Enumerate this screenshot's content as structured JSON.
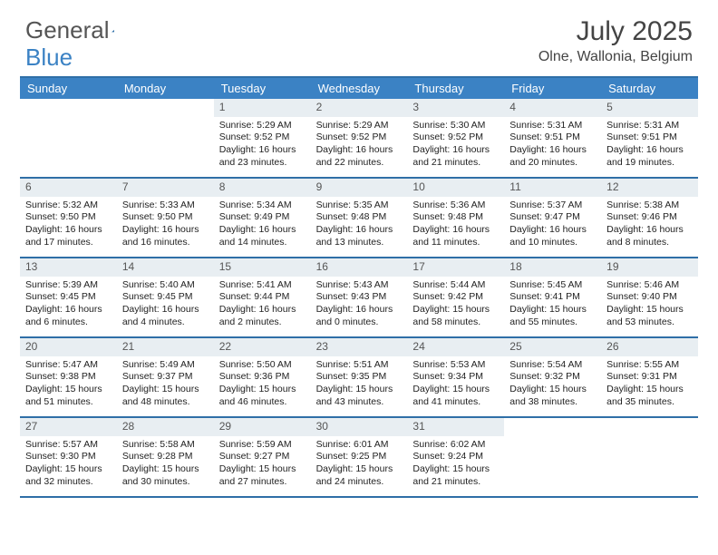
{
  "brand": {
    "part1": "General",
    "part2": "Blue"
  },
  "title": "July 2025",
  "location": "Olne, Wallonia, Belgium",
  "colors": {
    "header_bg": "#3b82c4",
    "border": "#2f6fa7",
    "daynum_bg": "#e8eef2",
    "text": "#333333",
    "white": "#ffffff"
  },
  "day_names": [
    "Sunday",
    "Monday",
    "Tuesday",
    "Wednesday",
    "Thursday",
    "Friday",
    "Saturday"
  ],
  "weeks": [
    [
      null,
      null,
      {
        "n": "1",
        "sr": "Sunrise: 5:29 AM",
        "ss": "Sunset: 9:52 PM",
        "d1": "Daylight: 16 hours",
        "d2": "and 23 minutes."
      },
      {
        "n": "2",
        "sr": "Sunrise: 5:29 AM",
        "ss": "Sunset: 9:52 PM",
        "d1": "Daylight: 16 hours",
        "d2": "and 22 minutes."
      },
      {
        "n": "3",
        "sr": "Sunrise: 5:30 AM",
        "ss": "Sunset: 9:52 PM",
        "d1": "Daylight: 16 hours",
        "d2": "and 21 minutes."
      },
      {
        "n": "4",
        "sr": "Sunrise: 5:31 AM",
        "ss": "Sunset: 9:51 PM",
        "d1": "Daylight: 16 hours",
        "d2": "and 20 minutes."
      },
      {
        "n": "5",
        "sr": "Sunrise: 5:31 AM",
        "ss": "Sunset: 9:51 PM",
        "d1": "Daylight: 16 hours",
        "d2": "and 19 minutes."
      }
    ],
    [
      {
        "n": "6",
        "sr": "Sunrise: 5:32 AM",
        "ss": "Sunset: 9:50 PM",
        "d1": "Daylight: 16 hours",
        "d2": "and 17 minutes."
      },
      {
        "n": "7",
        "sr": "Sunrise: 5:33 AM",
        "ss": "Sunset: 9:50 PM",
        "d1": "Daylight: 16 hours",
        "d2": "and 16 minutes."
      },
      {
        "n": "8",
        "sr": "Sunrise: 5:34 AM",
        "ss": "Sunset: 9:49 PM",
        "d1": "Daylight: 16 hours",
        "d2": "and 14 minutes."
      },
      {
        "n": "9",
        "sr": "Sunrise: 5:35 AM",
        "ss": "Sunset: 9:48 PM",
        "d1": "Daylight: 16 hours",
        "d2": "and 13 minutes."
      },
      {
        "n": "10",
        "sr": "Sunrise: 5:36 AM",
        "ss": "Sunset: 9:48 PM",
        "d1": "Daylight: 16 hours",
        "d2": "and 11 minutes."
      },
      {
        "n": "11",
        "sr": "Sunrise: 5:37 AM",
        "ss": "Sunset: 9:47 PM",
        "d1": "Daylight: 16 hours",
        "d2": "and 10 minutes."
      },
      {
        "n": "12",
        "sr": "Sunrise: 5:38 AM",
        "ss": "Sunset: 9:46 PM",
        "d1": "Daylight: 16 hours",
        "d2": "and 8 minutes."
      }
    ],
    [
      {
        "n": "13",
        "sr": "Sunrise: 5:39 AM",
        "ss": "Sunset: 9:45 PM",
        "d1": "Daylight: 16 hours",
        "d2": "and 6 minutes."
      },
      {
        "n": "14",
        "sr": "Sunrise: 5:40 AM",
        "ss": "Sunset: 9:45 PM",
        "d1": "Daylight: 16 hours",
        "d2": "and 4 minutes."
      },
      {
        "n": "15",
        "sr": "Sunrise: 5:41 AM",
        "ss": "Sunset: 9:44 PM",
        "d1": "Daylight: 16 hours",
        "d2": "and 2 minutes."
      },
      {
        "n": "16",
        "sr": "Sunrise: 5:43 AM",
        "ss": "Sunset: 9:43 PM",
        "d1": "Daylight: 16 hours",
        "d2": "and 0 minutes."
      },
      {
        "n": "17",
        "sr": "Sunrise: 5:44 AM",
        "ss": "Sunset: 9:42 PM",
        "d1": "Daylight: 15 hours",
        "d2": "and 58 minutes."
      },
      {
        "n": "18",
        "sr": "Sunrise: 5:45 AM",
        "ss": "Sunset: 9:41 PM",
        "d1": "Daylight: 15 hours",
        "d2": "and 55 minutes."
      },
      {
        "n": "19",
        "sr": "Sunrise: 5:46 AM",
        "ss": "Sunset: 9:40 PM",
        "d1": "Daylight: 15 hours",
        "d2": "and 53 minutes."
      }
    ],
    [
      {
        "n": "20",
        "sr": "Sunrise: 5:47 AM",
        "ss": "Sunset: 9:38 PM",
        "d1": "Daylight: 15 hours",
        "d2": "and 51 minutes."
      },
      {
        "n": "21",
        "sr": "Sunrise: 5:49 AM",
        "ss": "Sunset: 9:37 PM",
        "d1": "Daylight: 15 hours",
        "d2": "and 48 minutes."
      },
      {
        "n": "22",
        "sr": "Sunrise: 5:50 AM",
        "ss": "Sunset: 9:36 PM",
        "d1": "Daylight: 15 hours",
        "d2": "and 46 minutes."
      },
      {
        "n": "23",
        "sr": "Sunrise: 5:51 AM",
        "ss": "Sunset: 9:35 PM",
        "d1": "Daylight: 15 hours",
        "d2": "and 43 minutes."
      },
      {
        "n": "24",
        "sr": "Sunrise: 5:53 AM",
        "ss": "Sunset: 9:34 PM",
        "d1": "Daylight: 15 hours",
        "d2": "and 41 minutes."
      },
      {
        "n": "25",
        "sr": "Sunrise: 5:54 AM",
        "ss": "Sunset: 9:32 PM",
        "d1": "Daylight: 15 hours",
        "d2": "and 38 minutes."
      },
      {
        "n": "26",
        "sr": "Sunrise: 5:55 AM",
        "ss": "Sunset: 9:31 PM",
        "d1": "Daylight: 15 hours",
        "d2": "and 35 minutes."
      }
    ],
    [
      {
        "n": "27",
        "sr": "Sunrise: 5:57 AM",
        "ss": "Sunset: 9:30 PM",
        "d1": "Daylight: 15 hours",
        "d2": "and 32 minutes."
      },
      {
        "n": "28",
        "sr": "Sunrise: 5:58 AM",
        "ss": "Sunset: 9:28 PM",
        "d1": "Daylight: 15 hours",
        "d2": "and 30 minutes."
      },
      {
        "n": "29",
        "sr": "Sunrise: 5:59 AM",
        "ss": "Sunset: 9:27 PM",
        "d1": "Daylight: 15 hours",
        "d2": "and 27 minutes."
      },
      {
        "n": "30",
        "sr": "Sunrise: 6:01 AM",
        "ss": "Sunset: 9:25 PM",
        "d1": "Daylight: 15 hours",
        "d2": "and 24 minutes."
      },
      {
        "n": "31",
        "sr": "Sunrise: 6:02 AM",
        "ss": "Sunset: 9:24 PM",
        "d1": "Daylight: 15 hours",
        "d2": "and 21 minutes."
      },
      null,
      null
    ]
  ]
}
